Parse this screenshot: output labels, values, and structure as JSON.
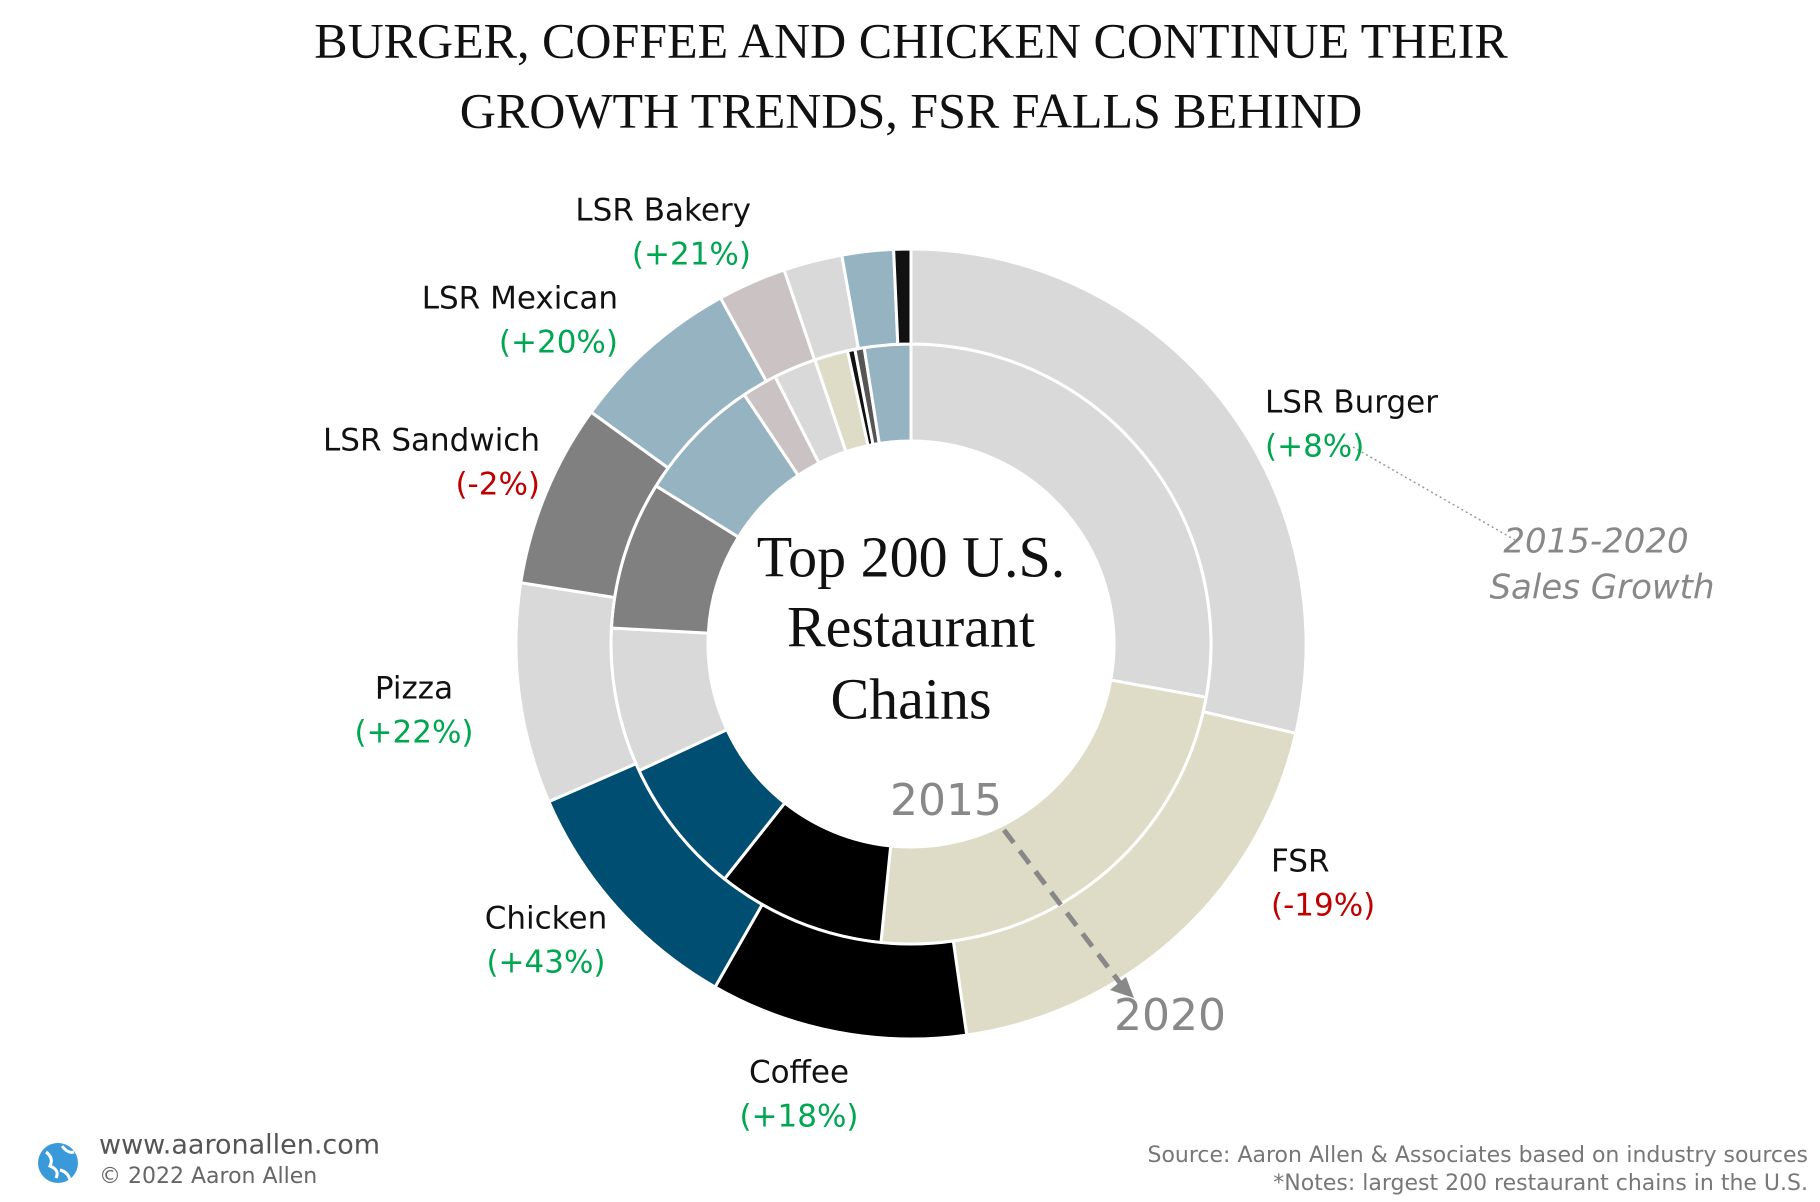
{
  "chart_data": {
    "type": "nested-donut",
    "title_lines": [
      "BURGER, COFFEE AND CHICKEN CONTINUE THEIR",
      "GROWTH TRENDS, FSR FALLS BEHIND"
    ],
    "center_label_lines": [
      "Top 200 U.S.",
      "Restaurant",
      "Chains"
    ],
    "growth_note_lines": [
      "2015-2020",
      "Sales Growth"
    ],
    "rings": [
      {
        "name": "2015",
        "categories": [
          "LSR Burger",
          "FSR",
          "Coffee",
          "Chicken",
          "Pizza",
          "LSR Sandwich",
          "LSR Mexican",
          null,
          null,
          null,
          null,
          null,
          null
        ],
        "values": [
          27.9,
          23.8,
          9.1,
          7.4,
          7.8,
          8.0,
          6.8,
          1.9,
          2.3,
          1.8,
          0.4,
          0.5,
          2.5
        ],
        "colors": [
          "#d9d9d9",
          "#dedbc6",
          "#000000",
          "#004e72",
          "#d9d9d9",
          "#808080",
          "#96b3c2",
          "#cbc3c3",
          "#d9d9d9",
          "#dedbc6",
          "#111111",
          "#555555",
          "#96b3c2"
        ]
      },
      {
        "name": "2020",
        "categories": [
          "LSR Burger",
          "FSR",
          "Coffee",
          "Chicken",
          "Pizza",
          "LSR Sandwich",
          "LSR Mexican",
          "LSR Bakery",
          null,
          null,
          null
        ],
        "values": [
          28.6,
          19.1,
          10.5,
          10.2,
          9.0,
          7.5,
          7.0,
          2.8,
          2.4,
          2.1,
          0.7
        ],
        "colors": [
          "#d9d9d9",
          "#dedbc6",
          "#000000",
          "#004e72",
          "#d9d9d9",
          "#808080",
          "#96b3c2",
          "#cbc3c3",
          "#d9d9d9",
          "#96b3c2",
          "#111111"
        ],
        "growth_labels": [
          "(+8%)",
          "(-19%)",
          "(+18%)",
          "(+43%)",
          "(+22%)",
          "(-2%)",
          "(+20%)",
          "(+21%)",
          null,
          null,
          null
        ],
        "growth_colors": [
          "#00a650",
          "#c00000",
          "#00a650",
          "#00a650",
          "#00a650",
          "#c00000",
          "#00a650",
          "#00a650",
          null,
          null,
          null
        ]
      }
    ],
    "footer": {
      "website": "www.aaronallen.com",
      "copyright": "© 2022 Aaron Allen",
      "source": "Source: Aaron Allen & Associates based on industry sources",
      "notes": "*Notes: largest 200 restaurant chains in the U.S."
    }
  }
}
